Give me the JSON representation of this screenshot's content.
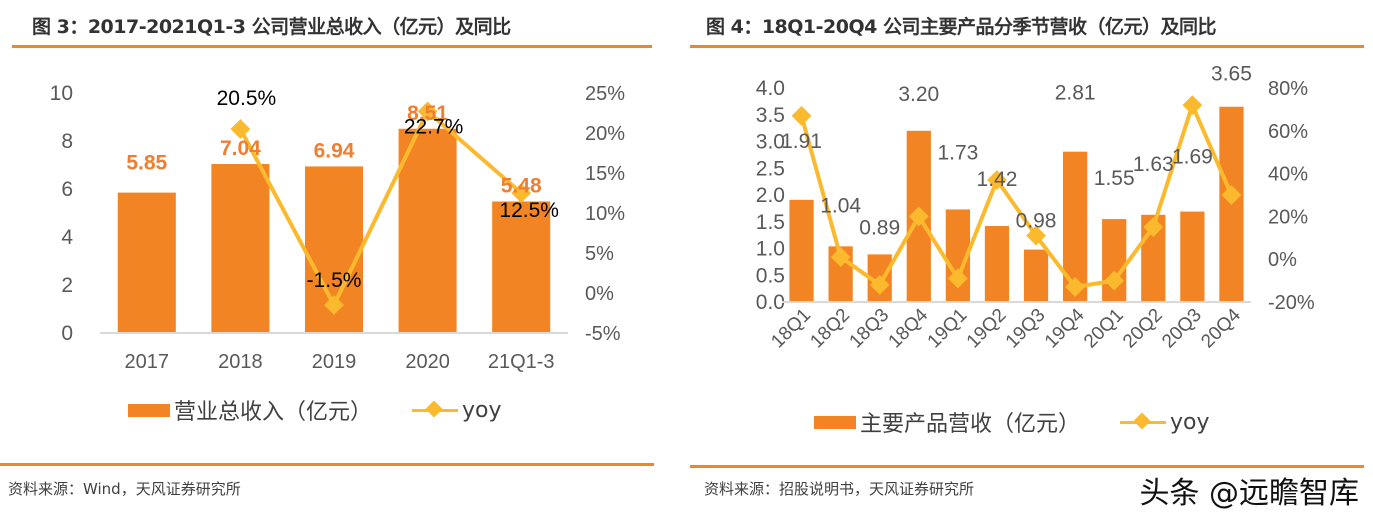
{
  "colors": {
    "bar": "#F28423",
    "line": "#FBBA2E",
    "rule": "#F0862A",
    "bar_label": "#F07E30",
    "axis_text": "#595959"
  },
  "watermark": "头条 @远瞻智库",
  "chart_data": [
    {
      "type": "bar",
      "title": "图 3：2017-2021Q1-3 公司营业总收入（亿元）及同比",
      "categories": [
        "2017",
        "2018",
        "2019",
        "2020",
        "21Q1-3"
      ],
      "series": [
        {
          "name": "营业总收入（亿元）",
          "type": "bar",
          "axis": "left",
          "values": [
            5.85,
            7.04,
            6.94,
            8.51,
            5.48
          ],
          "labels": [
            "5.85",
            "7.04",
            "6.94",
            "8.51",
            "5.48"
          ]
        },
        {
          "name": "yoy",
          "type": "line",
          "axis": "right",
          "values": [
            null,
            20.5,
            -1.5,
            22.7,
            12.5
          ],
          "labels": [
            "",
            "20.5%",
            "-1.5%",
            "22.7%",
            "12.5%"
          ]
        }
      ],
      "y_left": {
        "min": 0,
        "max": 10,
        "ticks": [
          "0",
          "2",
          "4",
          "6",
          "8",
          "10"
        ]
      },
      "y_right": {
        "min": -5,
        "max": 25,
        "ticks": [
          "-5%",
          "0%",
          "5%",
          "10%",
          "15%",
          "20%",
          "25%"
        ]
      },
      "legend": [
        "营业总收入（亿元）",
        "yoy"
      ],
      "legend_position": "bottom",
      "grid": false,
      "source": "资料来源：Wind，天风证券研究所"
    },
    {
      "type": "bar",
      "title": "图 4：18Q1-20Q4 公司主要产品分季节营收（亿元）及同比",
      "categories": [
        "18Q1",
        "18Q2",
        "18Q3",
        "18Q4",
        "19Q1",
        "19Q2",
        "19Q3",
        "19Q4",
        "20Q1",
        "20Q2",
        "20Q3",
        "20Q4"
      ],
      "series": [
        {
          "name": "主要产品营收（亿元）",
          "type": "bar",
          "axis": "left",
          "values": [
            1.91,
            1.04,
            0.89,
            3.2,
            1.73,
            1.42,
            0.98,
            2.81,
            1.55,
            1.63,
            1.69,
            3.65
          ],
          "labels": [
            "1.91",
            "1.04",
            "0.89",
            "3.20",
            "1.73",
            "1.42",
            "0.98",
            "2.81",
            "1.55",
            "1.63",
            "1.69",
            "3.65"
          ]
        },
        {
          "name": "yoy",
          "type": "line",
          "axis": "right",
          "values": [
            67,
            1,
            -12,
            20,
            -9,
            37,
            11,
            -13,
            -10,
            15,
            72,
            30
          ]
        }
      ],
      "y_left": {
        "min": 0,
        "max": 4,
        "ticks": [
          "0.0",
          "0.5",
          "1.0",
          "1.5",
          "2.0",
          "2.5",
          "3.0",
          "3.5",
          "4.0"
        ]
      },
      "y_right": {
        "min": -20,
        "max": 80,
        "ticks": [
          "-20%",
          "0%",
          "20%",
          "40%",
          "60%",
          "80%"
        ]
      },
      "legend": [
        "主要产品营收（亿元）",
        "yoy"
      ],
      "legend_position": "bottom",
      "grid": false,
      "source": "资料来源：招股说明书，天风证券研究所"
    }
  ]
}
